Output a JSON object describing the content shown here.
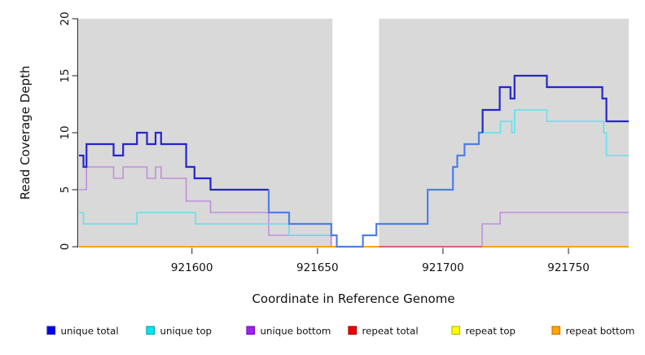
{
  "chart_data": {
    "type": "line",
    "subtype": "step-coverage",
    "xlabel": "Coordinate in Reference Genome",
    "ylabel": "Read Coverage Depth",
    "xlim": [
      921555,
      921774
    ],
    "ylim": [
      0,
      20
    ],
    "x_ticks": [
      921600,
      921650,
      921700,
      921750
    ],
    "y_ticks": [
      0,
      5,
      10,
      15,
      20
    ],
    "grid": false,
    "plot_bg": "#D9D9D9",
    "gap_region": {
      "start": 921656,
      "end": 921674.5
    },
    "zero_line_segments": [
      {
        "from": 921555,
        "to": 921674.5,
        "color": "#FFA019"
      },
      {
        "from": 921674.5,
        "to": 921715.6,
        "color": "#DB607F"
      },
      {
        "from": 921715.6,
        "to": 921774,
        "color": "#FFA019"
      }
    ],
    "series": [
      {
        "name": "unique bottom",
        "color": "#C08FDC",
        "width": 1.6,
        "steps": [
          [
            921555,
            5
          ],
          [
            921558,
            7
          ],
          [
            921568.8,
            6
          ],
          [
            921572.6,
            7
          ],
          [
            921582.1,
            6
          ],
          [
            921585.5,
            7
          ],
          [
            921587.7,
            6
          ],
          [
            921597.7,
            4
          ],
          [
            921607.4,
            3
          ],
          [
            921630.6,
            1
          ],
          [
            921655.4,
            0
          ],
          [
            921715.6,
            2
          ],
          [
            921722.8,
            3
          ]
        ],
        "end": 921774
      },
      {
        "name": "unique top",
        "color": "#5FE3EA",
        "width": 1.6,
        "steps": [
          [
            921555,
            3
          ],
          [
            921556.8,
            2
          ],
          [
            921578.1,
            3
          ],
          [
            921601.4,
            2
          ],
          [
            921638.7,
            1
          ],
          [
            921657.7,
            0
          ],
          [
            921668.1,
            1
          ],
          [
            921673.5,
            2
          ],
          [
            921693.9,
            5
          ],
          [
            921704,
            7
          ],
          [
            921705.7,
            8
          ],
          [
            921708.6,
            9
          ],
          [
            921714.3,
            10
          ],
          [
            921722.9,
            11
          ],
          [
            921727.4,
            10
          ],
          [
            921728.5,
            12
          ],
          [
            921741.4,
            11
          ],
          [
            921764,
            10
          ],
          [
            921765.1,
            8
          ]
        ],
        "end": 921774
      },
      {
        "name": "unique total",
        "color": "#2525CF",
        "width": 2.2,
        "steps": [
          [
            921555,
            8
          ],
          [
            921556.8,
            7
          ],
          [
            921558,
            9
          ],
          [
            921568.8,
            8
          ],
          [
            921572.6,
            9
          ],
          [
            921578.1,
            10
          ],
          [
            921582.1,
            9
          ],
          [
            921585.5,
            10
          ],
          [
            921587.7,
            9
          ],
          [
            921597.7,
            7
          ],
          [
            921601,
            6
          ],
          [
            921607.4,
            5
          ]
        ],
        "end": 921630.6
      },
      {
        "name": "unique total",
        "color": "#4E7FE6",
        "width": 2.2,
        "steps": [
          [
            921630.6,
            5
          ],
          [
            921630.6,
            3
          ],
          [
            921638.7,
            2
          ],
          [
            921655.5,
            1
          ],
          [
            921657.7,
            0
          ],
          [
            921668.1,
            1
          ],
          [
            921673.5,
            2
          ],
          [
            921693.9,
            5
          ],
          [
            921704,
            7
          ],
          [
            921705.7,
            8
          ],
          [
            921708.6,
            9
          ],
          [
            921714.3,
            10
          ]
        ],
        "end": 921715.8
      },
      {
        "name": "unique total",
        "color": "#2525CF",
        "width": 2.2,
        "steps": [
          [
            921715.8,
            10
          ],
          [
            921715.8,
            12
          ],
          [
            921722.6,
            14
          ],
          [
            921726.9,
            13
          ],
          [
            921728.5,
            15
          ],
          [
            921741.4,
            14
          ],
          [
            921763.5,
            13
          ],
          [
            921765.1,
            11
          ]
        ],
        "end": 921774
      }
    ],
    "legend": [
      {
        "label": "unique total",
        "fill": "#0000EE",
        "border": "#2222AA"
      },
      {
        "label": "unique top",
        "fill": "#00E5EE",
        "border": "#00AAB4"
      },
      {
        "label": "unique bottom",
        "fill": "#A020F0",
        "border": "#7711BB"
      },
      {
        "label": "repeat total",
        "fill": "#EE0000",
        "border": "#AA0000"
      },
      {
        "label": "repeat top",
        "fill": "#FFFF00",
        "border": "#BBBB00"
      },
      {
        "label": "repeat bottom",
        "fill": "#FFA500",
        "border": "#CC7700"
      }
    ],
    "legend_position": "bottom"
  }
}
